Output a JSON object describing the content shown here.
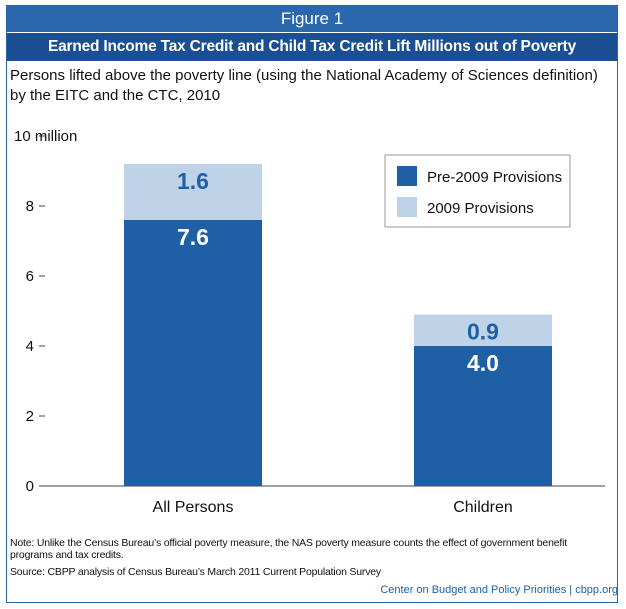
{
  "figure_label": "Figure 1",
  "title": "Earned Income Tax Credit and Child Tax Credit Lift Millions out of Poverty",
  "subtitle_line1": "Persons lifted above the poverty line (using the National Academy of Sciences definition)",
  "subtitle_line2": "by the EITC and the CTC, 2010",
  "note": "Note: Unlike the Census Bureau’s official poverty measure, the NAS poverty measure counts the effect of government benefit programs and tax credits.",
  "source": "Source: CBPP analysis of Census Bureau’s March 2011 Current Population Survey",
  "credit": "Center on Budget and Policy Priorities | cbpp.org",
  "colors": {
    "pre2009": "#1f5fa6",
    "provisions2009": "#bfd3e8",
    "header_light": "#2a67ad",
    "header_dark": "#1b4f93"
  },
  "chart_data": {
    "type": "bar",
    "stacked": true,
    "categories": [
      "All Persons",
      "Children"
    ],
    "series": [
      {
        "name": "Pre-2009 Provisions",
        "values": [
          7.6,
          4.0
        ],
        "labels": [
          "7.6",
          "4.0"
        ]
      },
      {
        "name": "2009 Provisions",
        "values": [
          1.6,
          0.9
        ],
        "labels": [
          "1.6",
          "0.9"
        ]
      }
    ],
    "ylim": [
      0,
      10
    ],
    "yticks": [
      0,
      2,
      4,
      6,
      8,
      10
    ],
    "ytick_labels": [
      "0",
      "2",
      "4",
      "6",
      "8",
      "10 million"
    ],
    "legend_position": "top-right",
    "grid": false
  }
}
